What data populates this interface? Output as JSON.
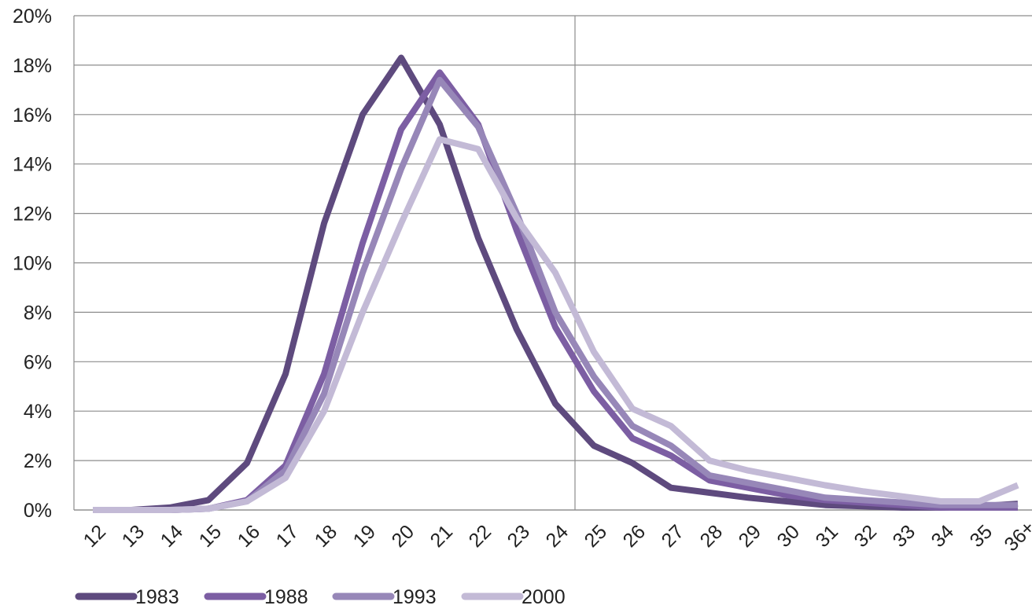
{
  "chart_data": {
    "type": "line",
    "title": "",
    "xlabel": "",
    "ylabel": "",
    "categories": [
      "12",
      "13",
      "14",
      "15",
      "16",
      "17",
      "18",
      "19",
      "20",
      "21",
      "22",
      "23",
      "24",
      "25",
      "26",
      "27",
      "28",
      "29",
      "30",
      "31",
      "32",
      "33",
      "34",
      "35",
      "36+"
    ],
    "y_ticks": [
      "0%",
      "2%",
      "4%",
      "6%",
      "8%",
      "10%",
      "12%",
      "14%",
      "16%",
      "18%",
      "20%"
    ],
    "ylim": [
      0,
      20
    ],
    "y_unit": "percent",
    "grid": "horizontal",
    "legend_position": "bottom-left",
    "series": [
      {
        "name": "1983",
        "color": "#5e4a7e",
        "values": [
          0,
          0,
          0.1,
          0.4,
          1.9,
          5.5,
          11.6,
          16.0,
          18.3,
          15.6,
          11.0,
          7.3,
          4.3,
          2.6,
          1.9,
          0.9,
          0.7,
          0.5,
          0.35,
          0.2,
          0.15,
          0.1,
          0.1,
          0.15,
          0.25
        ]
      },
      {
        "name": "1988",
        "color": "#7c5ea3",
        "values": [
          0,
          0,
          0,
          0.05,
          0.4,
          1.8,
          5.5,
          10.8,
          15.4,
          17.7,
          15.6,
          11.3,
          7.4,
          4.8,
          2.9,
          2.2,
          1.2,
          0.9,
          0.6,
          0.4,
          0.3,
          0.2,
          0.1,
          0.1,
          0.1
        ]
      },
      {
        "name": "1993",
        "color": "#9787b8",
        "values": [
          0,
          0,
          0,
          0.05,
          0.35,
          1.6,
          4.7,
          9.6,
          13.8,
          17.4,
          15.5,
          12.0,
          8.0,
          5.4,
          3.4,
          2.6,
          1.4,
          1.1,
          0.8,
          0.5,
          0.4,
          0.3,
          0.2,
          0.2,
          0.2
        ]
      },
      {
        "name": "2000",
        "color": "#c3bad6",
        "values": [
          0,
          0,
          0,
          0.05,
          0.35,
          1.3,
          4.0,
          8.0,
          11.6,
          15.0,
          14.6,
          11.8,
          9.6,
          6.4,
          4.1,
          3.4,
          2.0,
          1.6,
          1.3,
          1.0,
          0.75,
          0.55,
          0.35,
          0.35,
          1.0
        ]
      }
    ]
  }
}
